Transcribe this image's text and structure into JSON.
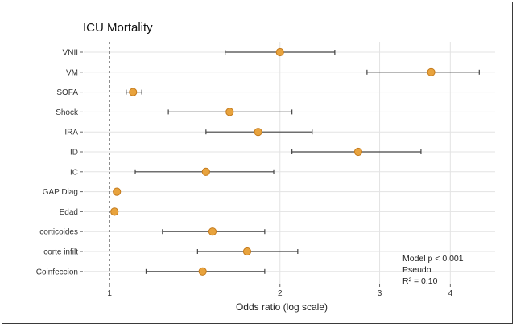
{
  "chart_data": {
    "type": "forest",
    "title": "ICU Mortality",
    "xlabel": "Odds ratio (log scale)",
    "x_scale": "log",
    "xlim": [
      0.9,
      4.8
    ],
    "x_ticks": [
      1,
      2,
      3,
      4
    ],
    "x_tick_labels": [
      "1",
      "2",
      "3",
      "4"
    ],
    "reference_line": 1,
    "grid": true,
    "point_color": "#E8A33D",
    "point_edge_color": "#C47A1C",
    "ci_color": "#444444",
    "ref_line_color": "#555555",
    "categories": [
      "VNII",
      "VM",
      "SOFA",
      "Shock",
      "IRA",
      "ID",
      "IC",
      "GAP Diag",
      "Edad",
      "corticoides",
      "corte infilt",
      "Coinfeccion"
    ],
    "estimates": [
      2.0,
      3.7,
      1.1,
      1.63,
      1.83,
      2.75,
      1.48,
      1.03,
      1.02,
      1.52,
      1.75,
      1.46
    ],
    "ci_low": [
      1.6,
      2.85,
      1.07,
      1.27,
      1.48,
      2.1,
      1.11,
      1.03,
      1.02,
      1.24,
      1.43,
      1.16
    ],
    "ci_high": [
      2.5,
      4.5,
      1.14,
      2.1,
      2.28,
      3.55,
      1.95,
      1.03,
      1.02,
      1.88,
      2.15,
      1.88
    ],
    "annotation_lines": [
      "Model p < 0.001",
      "Pseudo",
      "R² = 0.10"
    ]
  }
}
